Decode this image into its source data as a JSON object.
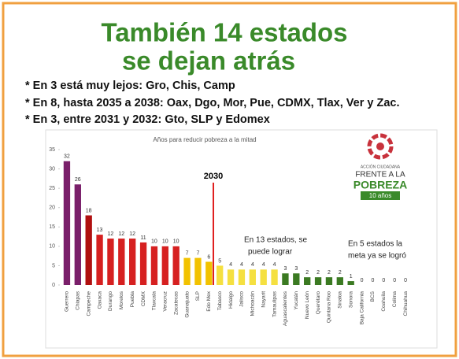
{
  "slide": {
    "title": [
      "También 14 estados",
      "se dejan atrás"
    ],
    "bullets": [
      "* En 3 está muy lejos: Gro, Chis, Camp",
      "* En 8, hasta 2035 a 2038: Oax, Dgo, Mor, Pue, CDMX, Tlax, Ver y Zac.",
      "* En 3, entre 2031 y 2032: Gto, SLP y Edomex"
    ],
    "logo": [
      "ACCIÓN CIUDADANA",
      "FRENTE A LA",
      "POBREZA",
      "10 años"
    ]
  },
  "chart_data": {
    "type": "bar",
    "title": "Años para reducir pobreza a la mitad",
    "categories": [
      "Guerrero",
      "Chiapas",
      "Campeche",
      "Oaxaca",
      "Durango",
      "Morelos",
      "Puebla",
      "CDMX",
      "Tlaxcala",
      "Veracruz",
      "Zacatecas",
      "Guanajuato",
      "SLP",
      "Edo Mex",
      "Tabasco",
      "Hidalgo",
      "Jalisco",
      "Michoacán",
      "Nayarit",
      "Tamaulipas",
      "Aguascalientes",
      "Yucatán",
      "Nuevo León",
      "Querétaro",
      "Quintana Roo",
      "Sinaloa",
      "Sonora",
      "Baja California",
      "BCS",
      "Coahuila",
      "Colima",
      "Chihuahua"
    ],
    "values": [
      32,
      26,
      18,
      13,
      12,
      12,
      12,
      11,
      10,
      10,
      10,
      7,
      7,
      6,
      5,
      4,
      4,
      4,
      4,
      4,
      3,
      3,
      2,
      2,
      2,
      2,
      1,
      0,
      0,
      0,
      0,
      0
    ],
    "colors": [
      "#7a1f6a",
      "#7a1f6a",
      "#b01010",
      "#d62020",
      "#d62020",
      "#d62020",
      "#d62020",
      "#d62020",
      "#d62020",
      "#d62020",
      "#d62020",
      "#f2c200",
      "#f2c200",
      "#f2c200",
      "#f5e040",
      "#f5e040",
      "#f5e040",
      "#f5e040",
      "#f5e040",
      "#f5e040",
      "#3b7a22",
      "#3b7a22",
      "#3b7a22",
      "#3b7a22",
      "#3b7a22",
      "#3b7a22",
      "#3b7a22",
      "#3b7a22",
      "#3b7a22",
      "#3b7a22",
      "#3b7a22",
      "#3b7a22"
    ],
    "ylim": [
      0,
      35
    ],
    "yticks": [
      0,
      5,
      10,
      15,
      20,
      25,
      30,
      35
    ],
    "annotations": [
      "2030",
      "En 13 estados, se",
      "puede lograr",
      "En 5 estados la",
      "meta ya se logró"
    ]
  }
}
